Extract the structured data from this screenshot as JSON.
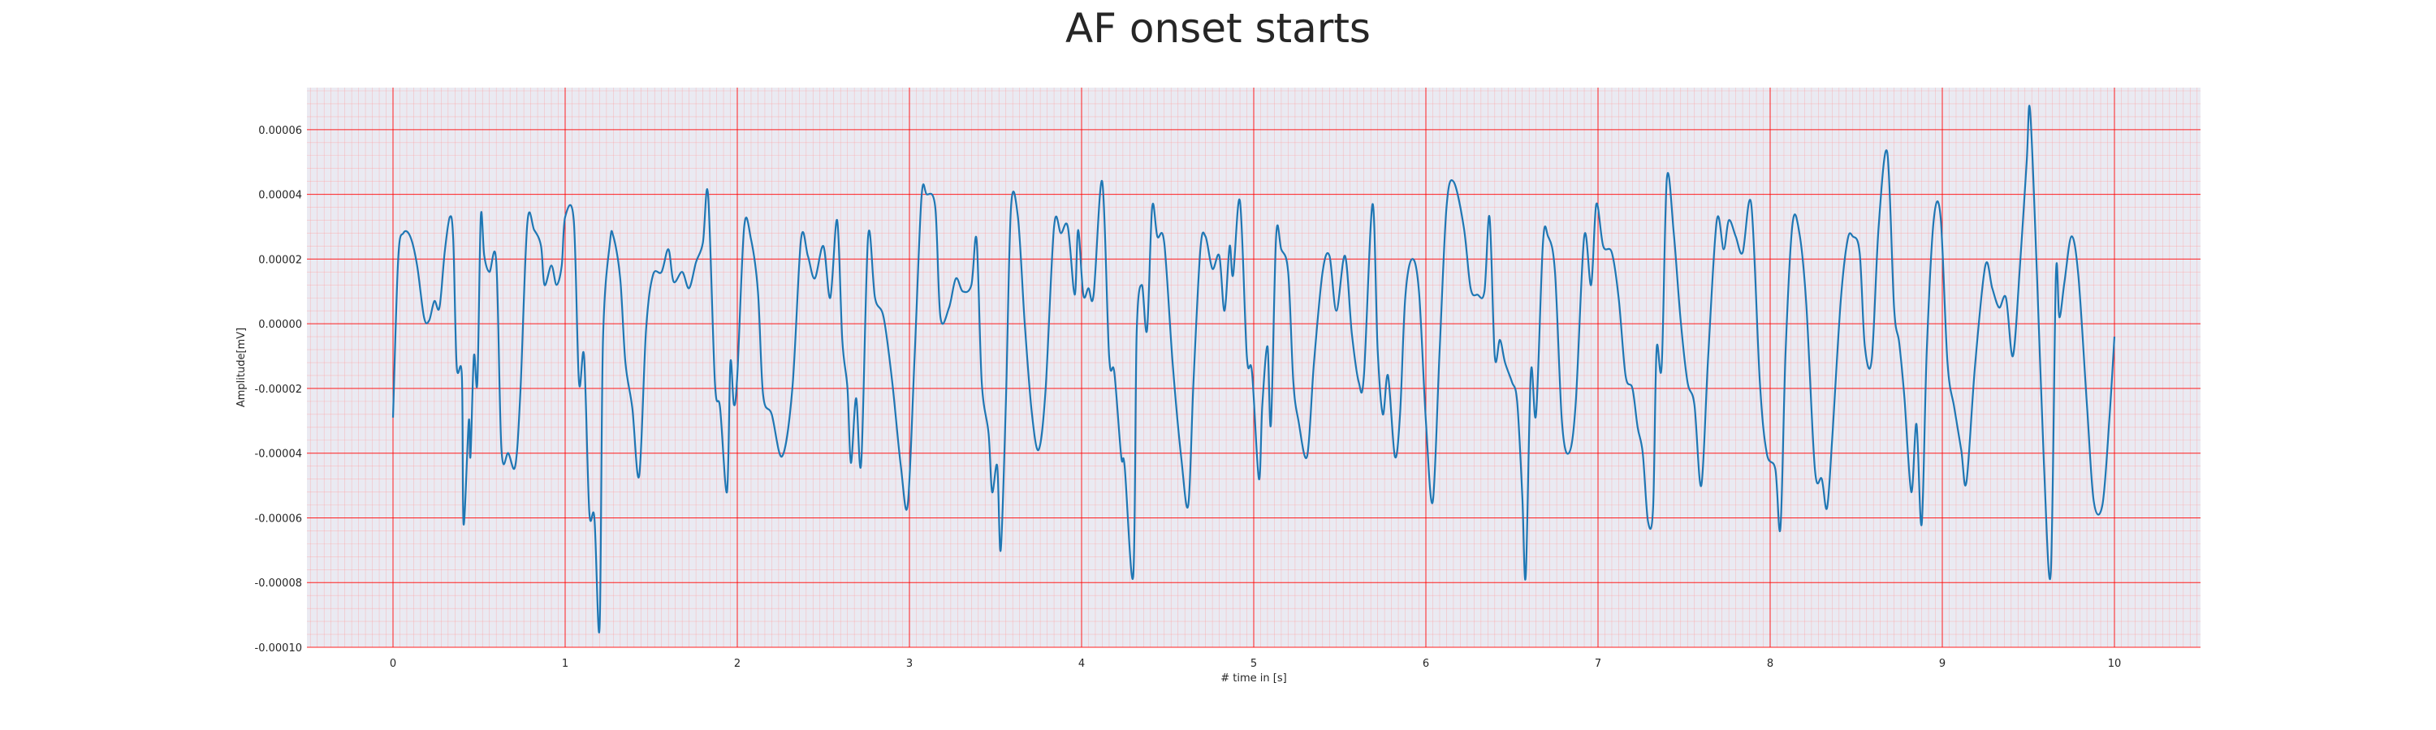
{
  "chart_data": {
    "type": "line",
    "title": "AF onset starts",
    "xlabel": "# time in [s]",
    "ylabel": "Amplitude[mV]",
    "xlim": [
      -0.5,
      10.5
    ],
    "ylim": [
      -0.0001,
      7.3e-05
    ],
    "x_ticks": [
      "0",
      "1",
      "2",
      "3",
      "4",
      "5",
      "6",
      "7",
      "8",
      "9",
      "10"
    ],
    "y_ticks": [
      "0.00006",
      "0.00004",
      "0.00002",
      "0.00000",
      "-0.00002",
      "-0.00004",
      "-0.00006",
      "-0.00008",
      "-0.00010"
    ],
    "grid": {
      "major": true,
      "minor": true,
      "major_color": "#ff0000",
      "minor_color": "#ff9a9a"
    },
    "background": "#eaeaf2",
    "series": [
      {
        "color": "#1f77b4",
        "points": [
          [
            0.0,
            -2.9e-05
          ],
          [
            0.03,
            2e-05
          ],
          [
            0.06,
            2.8e-05
          ],
          [
            0.1,
            2.7e-05
          ],
          [
            0.14,
            1.8e-05
          ],
          [
            0.18,
            2e-06
          ],
          [
            0.21,
            1e-06
          ],
          [
            0.24,
            7e-06
          ],
          [
            0.27,
            5e-06
          ],
          [
            0.3,
            2.2e-05
          ],
          [
            0.33,
            3.3e-05
          ],
          [
            0.35,
            2.6e-05
          ],
          [
            0.37,
            -1.3e-05
          ],
          [
            0.4,
            -1.6e-05
          ],
          [
            0.41,
            -6.2e-05
          ],
          [
            0.44,
            -3e-05
          ],
          [
            0.45,
            -4.1e-05
          ],
          [
            0.47,
            -1e-05
          ],
          [
            0.49,
            -1.8e-05
          ],
          [
            0.51,
            3.3e-05
          ],
          [
            0.53,
            2.1e-05
          ],
          [
            0.56,
            1.6e-05
          ],
          [
            0.6,
            1.9e-05
          ],
          [
            0.63,
            -3.9e-05
          ],
          [
            0.67,
            -4e-05
          ],
          [
            0.71,
            -4.4e-05
          ],
          [
            0.74,
            -2.1e-05
          ],
          [
            0.78,
            3.1e-05
          ],
          [
            0.82,
            2.9e-05
          ],
          [
            0.86,
            2.4e-05
          ],
          [
            0.88,
            1.2e-05
          ],
          [
            0.92,
            1.8e-05
          ],
          [
            0.95,
            1.2e-05
          ],
          [
            0.98,
            1.8e-05
          ],
          [
            1.0,
            3.3e-05
          ],
          [
            1.05,
            3.2e-05
          ],
          [
            1.08,
            -1.8e-05
          ],
          [
            1.11,
            -1e-05
          ],
          [
            1.14,
            -5.8e-05
          ],
          [
            1.17,
            -6e-05
          ],
          [
            1.2,
            -9.4e-05
          ],
          [
            1.22,
            -5e-06
          ],
          [
            1.26,
            2.5e-05
          ],
          [
            1.28,
            2.7e-05
          ],
          [
            1.32,
            1.4e-05
          ],
          [
            1.35,
            -1.2e-05
          ],
          [
            1.39,
            -2.6e-05
          ],
          [
            1.43,
            -4.7e-05
          ],
          [
            1.47,
            -2e-06
          ],
          [
            1.51,
            1.5e-05
          ],
          [
            1.56,
            1.6e-05
          ],
          [
            1.6,
            2.3e-05
          ],
          [
            1.63,
            1.3e-05
          ],
          [
            1.68,
            1.6e-05
          ],
          [
            1.72,
            1.1e-05
          ],
          [
            1.76,
            1.9e-05
          ],
          [
            1.8,
            2.5e-05
          ],
          [
            1.83,
            4e-05
          ],
          [
            1.87,
            -1.8e-05
          ],
          [
            1.9,
            -2.6e-05
          ],
          [
            1.94,
            -5.2e-05
          ],
          [
            1.96,
            -1.2e-05
          ],
          [
            1.98,
            -2.5e-05
          ],
          [
            2.0,
            -1.6e-05
          ],
          [
            2.04,
            3e-05
          ],
          [
            2.08,
            2.6e-05
          ],
          [
            2.12,
            1e-05
          ],
          [
            2.15,
            -2.2e-05
          ],
          [
            2.2,
            -2.8e-05
          ],
          [
            2.26,
            -4.1e-05
          ],
          [
            2.32,
            -2e-05
          ],
          [
            2.37,
            2.6e-05
          ],
          [
            2.41,
            2.1e-05
          ],
          [
            2.45,
            1.4e-05
          ],
          [
            2.5,
            2.4e-05
          ],
          [
            2.54,
            8e-06
          ],
          [
            2.58,
            3.2e-05
          ],
          [
            2.61,
            -5e-06
          ],
          [
            2.64,
            -2e-05
          ],
          [
            2.66,
            -4.3e-05
          ],
          [
            2.69,
            -2.3e-05
          ],
          [
            2.72,
            -4.3e-05
          ],
          [
            2.76,
            2.7e-05
          ],
          [
            2.8,
            8e-06
          ],
          [
            2.85,
            2e-06
          ],
          [
            2.9,
            -1.8e-05
          ],
          [
            2.95,
            -4.4e-05
          ],
          [
            2.99,
            -5.6e-05
          ],
          [
            3.03,
            -1e-05
          ],
          [
            3.07,
            3.9e-05
          ],
          [
            3.1,
            4e-05
          ],
          [
            3.15,
            3.6e-05
          ],
          [
            3.18,
            2e-06
          ],
          [
            3.23,
            5e-06
          ],
          [
            3.27,
            1.4e-05
          ],
          [
            3.31,
            1e-05
          ],
          [
            3.36,
            1.2e-05
          ],
          [
            3.39,
            2.6e-05
          ],
          [
            3.42,
            -1.8e-05
          ],
          [
            3.46,
            -3.4e-05
          ],
          [
            3.48,
            -5.2e-05
          ],
          [
            3.51,
            -4.4e-05
          ],
          [
            3.53,
            -7e-05
          ],
          [
            3.56,
            -2.5e-05
          ],
          [
            3.59,
            3.6e-05
          ],
          [
            3.63,
            3.3e-05
          ],
          [
            3.67,
            0.0
          ],
          [
            3.71,
            -2.7e-05
          ],
          [
            3.75,
            -3.9e-05
          ],
          [
            3.79,
            -2.1e-05
          ],
          [
            3.84,
            3e-05
          ],
          [
            3.88,
            2.8e-05
          ],
          [
            3.92,
            3e-05
          ],
          [
            3.96,
            9e-06
          ],
          [
            3.98,
            2.9e-05
          ],
          [
            4.01,
            9e-06
          ],
          [
            4.04,
            1.1e-05
          ],
          [
            4.07,
            9e-06
          ],
          [
            4.12,
            4.4e-05
          ],
          [
            4.16,
            -1e-05
          ],
          [
            4.19,
            -1.5e-05
          ],
          [
            4.23,
            -4.1e-05
          ],
          [
            4.25,
            -4.4e-05
          ],
          [
            4.3,
            -7.8e-05
          ],
          [
            4.32,
            -3e-06
          ],
          [
            4.35,
            1.2e-05
          ],
          [
            4.38,
            -2e-06
          ],
          [
            4.41,
            3.6e-05
          ],
          [
            4.44,
            2.7e-05
          ],
          [
            4.48,
            2.5e-05
          ],
          [
            4.53,
            -1.3e-05
          ],
          [
            4.58,
            -4.2e-05
          ],
          [
            4.62,
            -5.6e-05
          ],
          [
            4.65,
            -1.8e-05
          ],
          [
            4.69,
            2.3e-05
          ],
          [
            4.72,
            2.7e-05
          ],
          [
            4.76,
            1.7e-05
          ],
          [
            4.8,
            2.1e-05
          ],
          [
            4.83,
            4e-06
          ],
          [
            4.86,
            2.4e-05
          ],
          [
            4.88,
            1.5e-05
          ],
          [
            4.92,
            3.8e-05
          ],
          [
            4.96,
            -1e-05
          ],
          [
            4.99,
            -1.5e-05
          ],
          [
            5.03,
            -4.8e-05
          ],
          [
            5.05,
            -2.5e-05
          ],
          [
            5.08,
            -7e-06
          ],
          [
            5.1,
            -3.1e-05
          ],
          [
            5.13,
            2.7e-05
          ],
          [
            5.16,
            2.3e-05
          ],
          [
            5.2,
            1.6e-05
          ],
          [
            5.23,
            -1.8e-05
          ],
          [
            5.26,
            -3e-05
          ],
          [
            5.31,
            -4.1e-05
          ],
          [
            5.35,
            -1.2e-05
          ],
          [
            5.4,
            1.6e-05
          ],
          [
            5.44,
            2.1e-05
          ],
          [
            5.48,
            4e-06
          ],
          [
            5.53,
            2.1e-05
          ],
          [
            5.57,
            -3e-06
          ],
          [
            5.61,
            -1.8e-05
          ],
          [
            5.64,
            -1.6e-05
          ],
          [
            5.69,
            3.7e-05
          ],
          [
            5.72,
            -8e-06
          ],
          [
            5.75,
            -2.8e-05
          ],
          [
            5.78,
            -1.6e-05
          ],
          [
            5.82,
            -4.1e-05
          ],
          [
            5.85,
            -2.8e-05
          ],
          [
            5.88,
            8e-06
          ],
          [
            5.92,
            2e-05
          ],
          [
            5.96,
            1e-05
          ],
          [
            6.0,
            -3e-05
          ],
          [
            6.04,
            -5.5e-05
          ],
          [
            6.08,
            -8e-06
          ],
          [
            6.12,
            3.6e-05
          ],
          [
            6.16,
            4.4e-05
          ],
          [
            6.22,
            3e-05
          ],
          [
            6.26,
            1.1e-05
          ],
          [
            6.3,
            9e-06
          ],
          [
            6.34,
            1e-05
          ],
          [
            6.37,
            3.3e-05
          ],
          [
            6.4,
            -1e-05
          ],
          [
            6.43,
            -5e-06
          ],
          [
            6.46,
            -1.2e-05
          ],
          [
            6.5,
            -1.8e-05
          ],
          [
            6.53,
            -2.4e-05
          ],
          [
            6.56,
            -5.3e-05
          ],
          [
            6.58,
            -7.8e-05
          ],
          [
            6.61,
            -1.5e-05
          ],
          [
            6.64,
            -2.8e-05
          ],
          [
            6.68,
            2.5e-05
          ],
          [
            6.71,
            2.7e-05
          ],
          [
            6.75,
            1.6e-05
          ],
          [
            6.79,
            -3e-05
          ],
          [
            6.83,
            -4e-05
          ],
          [
            6.87,
            -2.5e-05
          ],
          [
            6.92,
            2.7e-05
          ],
          [
            6.96,
            1.2e-05
          ],
          [
            6.99,
            3.7e-05
          ],
          [
            7.03,
            2.4e-05
          ],
          [
            7.08,
            2.2e-05
          ],
          [
            7.12,
            8e-06
          ],
          [
            7.16,
            -1.6e-05
          ],
          [
            7.2,
            -2e-05
          ],
          [
            7.23,
            -3.2e-05
          ],
          [
            7.26,
            -4e-05
          ],
          [
            7.29,
            -6.1e-05
          ],
          [
            7.32,
            -5.7e-05
          ],
          [
            7.34,
            -8e-06
          ],
          [
            7.37,
            -1.3e-05
          ],
          [
            7.4,
            4.5e-05
          ],
          [
            7.44,
            2.8e-05
          ],
          [
            7.48,
            1e-06
          ],
          [
            7.52,
            -1.8e-05
          ],
          [
            7.56,
            -2.5e-05
          ],
          [
            7.6,
            -5e-05
          ],
          [
            7.64,
            -1e-05
          ],
          [
            7.69,
            3.2e-05
          ],
          [
            7.73,
            2.3e-05
          ],
          [
            7.76,
            3.2e-05
          ],
          [
            7.8,
            2.7e-05
          ],
          [
            7.84,
            2.2e-05
          ],
          [
            7.89,
            3.7e-05
          ],
          [
            7.94,
            -1.8e-05
          ],
          [
            7.98,
            -4e-05
          ],
          [
            8.03,
            -4.5e-05
          ],
          [
            8.06,
            -6.3e-05
          ],
          [
            8.09,
            -8e-06
          ],
          [
            8.13,
            3.1e-05
          ],
          [
            8.17,
            2.8e-05
          ],
          [
            8.21,
            6e-06
          ],
          [
            8.26,
            -4.5e-05
          ],
          [
            8.3,
            -4.8e-05
          ],
          [
            8.33,
            -5.7e-05
          ],
          [
            8.36,
            -3.6e-05
          ],
          [
            8.41,
            7e-06
          ],
          [
            8.45,
            2.6e-05
          ],
          [
            8.48,
            2.7e-05
          ],
          [
            8.52,
            2.2e-05
          ],
          [
            8.55,
            -7e-06
          ],
          [
            8.59,
            -1.1e-05
          ],
          [
            8.63,
            3e-05
          ],
          [
            8.68,
            5.3e-05
          ],
          [
            8.72,
            5e-06
          ],
          [
            8.75,
            -6e-06
          ],
          [
            8.78,
            -2.3e-05
          ],
          [
            8.82,
            -5.2e-05
          ],
          [
            8.85,
            -3.1e-05
          ],
          [
            8.88,
            -6.2e-05
          ],
          [
            8.91,
            -8e-06
          ],
          [
            8.95,
            3.2e-05
          ],
          [
            8.99,
            3.3e-05
          ],
          [
            9.03,
            -1.2e-05
          ],
          [
            9.07,
            -2.6e-05
          ],
          [
            9.11,
            -3.9e-05
          ],
          [
            9.14,
            -4.9e-05
          ],
          [
            9.19,
            -1.3e-05
          ],
          [
            9.25,
            1.8e-05
          ],
          [
            9.29,
            1.1e-05
          ],
          [
            9.33,
            5e-06
          ],
          [
            9.37,
            8e-06
          ],
          [
            9.41,
            -1e-05
          ],
          [
            9.45,
            1.7e-05
          ],
          [
            9.49,
            5e-05
          ],
          [
            9.51,
            6.6e-05
          ],
          [
            9.55,
            1.5e-05
          ],
          [
            9.59,
            -4.3e-05
          ],
          [
            9.63,
            -7.7e-05
          ],
          [
            9.66,
            1.5e-05
          ],
          [
            9.68,
            2e-06
          ],
          [
            9.71,
            1.3e-05
          ],
          [
            9.75,
            2.7e-05
          ],
          [
            9.79,
            1.5e-05
          ],
          [
            9.84,
            -2.5e-05
          ],
          [
            9.88,
            -5.5e-05
          ],
          [
            9.93,
            -5.6e-05
          ],
          [
            9.97,
            -3e-05
          ],
          [
            10.0,
            -4e-06
          ]
        ]
      }
    ]
  }
}
